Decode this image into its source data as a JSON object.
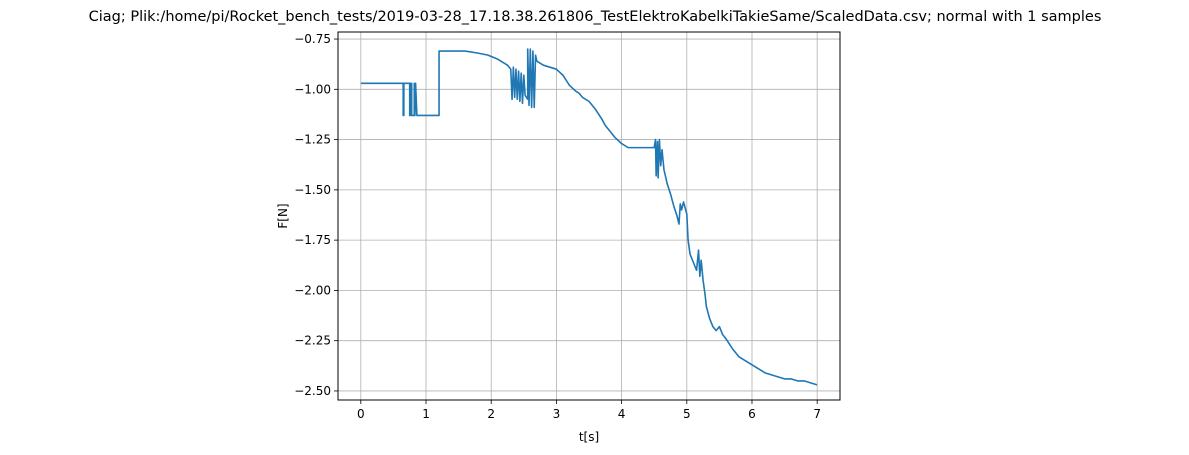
{
  "chart_data": {
    "type": "line",
    "title": "Ciag; Plik:/home/pi/Rocket_bench_tests/2019-03-28_17.18.38.261806_TestElektroKabelkiTakieSame/ScaledData.csv; normal with 1 samples",
    "xlabel": "t[s]",
    "ylabel": "F[N]",
    "xlim": [
      -0.35,
      7.35
    ],
    "ylim": [
      -2.545,
      -0.715
    ],
    "xticks": [
      0,
      1,
      2,
      3,
      4,
      5,
      6,
      7
    ],
    "xtick_labels": [
      "0",
      "1",
      "2",
      "3",
      "4",
      "5",
      "6",
      "7"
    ],
    "yticks": [
      -0.75,
      -1.0,
      -1.25,
      -1.5,
      -1.75,
      -2.0,
      -2.25,
      -2.5
    ],
    "ytick_labels": [
      "−0.75",
      "−1.00",
      "−1.25",
      "−1.50",
      "−1.75",
      "−2.00",
      "−2.25",
      "−2.50"
    ],
    "grid": true,
    "line_color": "#1f77b4",
    "series": [
      {
        "x": [
          0.0,
          0.65,
          0.65,
          0.66,
          0.66,
          0.75,
          0.75,
          0.76,
          0.77,
          0.78,
          0.78,
          0.82,
          0.82,
          0.83,
          0.84,
          0.86,
          0.86,
          0.87,
          0.87,
          1.2,
          1.2,
          1.21,
          1.21,
          1.4,
          1.6,
          1.8,
          1.95,
          2.1,
          2.25,
          2.3,
          2.32,
          2.34,
          2.36,
          2.38,
          2.4,
          2.42,
          2.44,
          2.46,
          2.48,
          2.5,
          2.52,
          2.56,
          2.56,
          2.58,
          2.6,
          2.62,
          2.64,
          2.66,
          2.68,
          2.7,
          2.8,
          2.9,
          3.0,
          3.1,
          3.2,
          3.3,
          3.35,
          3.4,
          3.5,
          3.6,
          3.7,
          3.75,
          3.8,
          3.85,
          3.9,
          4.0,
          4.1,
          4.5,
          4.52,
          4.53,
          4.55,
          4.56,
          4.58,
          4.6,
          4.62,
          4.65,
          4.7,
          4.75,
          4.8,
          4.85,
          4.88,
          4.9,
          4.92,
          4.95,
          5.0,
          5.02,
          5.05,
          5.1,
          5.15,
          5.18,
          5.2,
          5.22,
          5.25,
          5.28,
          5.3,
          5.35,
          5.4,
          5.45,
          5.5,
          5.55,
          5.6,
          5.7,
          5.8,
          5.9,
          6.0,
          6.1,
          6.2,
          6.3,
          6.4,
          6.5,
          6.6,
          6.7,
          6.8,
          6.9,
          7.0
        ],
        "y": [
          -0.97,
          -0.97,
          -1.13,
          -1.13,
          -0.97,
          -0.97,
          -1.13,
          -0.97,
          -1.13,
          -0.97,
          -1.13,
          -1.13,
          -0.97,
          -1.13,
          -0.97,
          -1.13,
          -1.13,
          -1.13,
          -1.13,
          -1.13,
          -0.81,
          -0.81,
          -0.81,
          -0.81,
          -0.81,
          -0.82,
          -0.83,
          -0.85,
          -0.88,
          -0.9,
          -1.05,
          -0.89,
          -1.04,
          -0.9,
          -1.05,
          -0.91,
          -1.06,
          -0.92,
          -1.07,
          -0.93,
          -1.03,
          -1.05,
          -0.8,
          -1.08,
          -0.8,
          -1.09,
          -0.81,
          -1.09,
          -0.83,
          -0.86,
          -0.88,
          -0.89,
          -0.9,
          -0.93,
          -0.98,
          -1.01,
          -1.02,
          -1.04,
          -1.06,
          -1.1,
          -1.15,
          -1.18,
          -1.2,
          -1.22,
          -1.24,
          -1.27,
          -1.29,
          -1.29,
          -1.25,
          -1.43,
          -1.26,
          -1.44,
          -1.25,
          -1.38,
          -1.3,
          -1.4,
          -1.47,
          -1.52,
          -1.58,
          -1.63,
          -1.67,
          -1.57,
          -1.6,
          -1.56,
          -1.62,
          -1.75,
          -1.82,
          -1.86,
          -1.9,
          -1.8,
          -1.93,
          -1.85,
          -1.95,
          -2.02,
          -2.08,
          -2.14,
          -2.18,
          -2.2,
          -2.18,
          -2.22,
          -2.24,
          -2.29,
          -2.33,
          -2.35,
          -2.37,
          -2.39,
          -2.41,
          -2.42,
          -2.43,
          -2.44,
          -2.44,
          -2.45,
          -2.45,
          -2.46,
          -2.47
        ]
      }
    ]
  }
}
